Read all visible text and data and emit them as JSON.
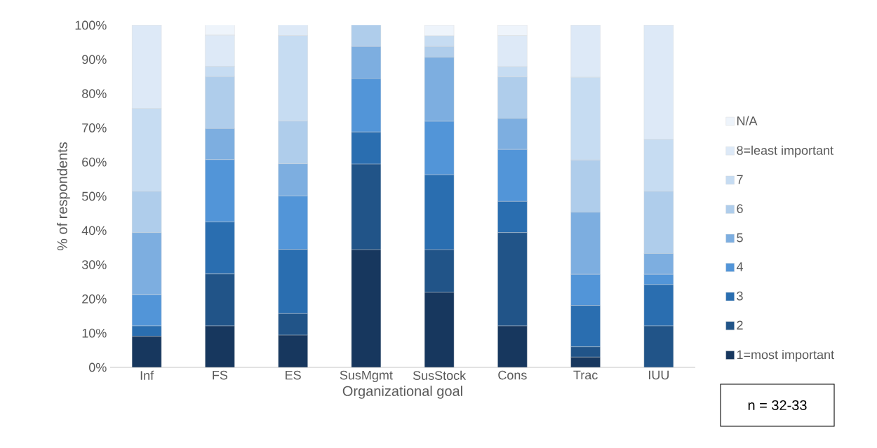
{
  "chart_data": {
    "type": "bar",
    "stacked": true,
    "xlabel": "Organizational goal",
    "ylabel": "% of respondents",
    "categories": [
      "Inf",
      "FS",
      "ES",
      "SusMgmt",
      "SusStock",
      "Cons",
      "Trac",
      "IUU"
    ],
    "series": [
      {
        "name": "1=most important",
        "color": "#17375e",
        "values": [
          9.1,
          12.1,
          9.4,
          34.4,
          21.9,
          12.1,
          3.0,
          0
        ]
      },
      {
        "name": "2",
        "color": "#215488",
        "values": [
          0,
          15.2,
          6.3,
          25.0,
          12.5,
          27.3,
          3.0,
          12.1
        ]
      },
      {
        "name": "3",
        "color": "#2a6eb0",
        "values": [
          3.0,
          15.2,
          18.8,
          9.4,
          21.9,
          9.1,
          12.1,
          12.1
        ]
      },
      {
        "name": "4",
        "color": "#5295d8",
        "values": [
          9.1,
          18.2,
          15.6,
          15.6,
          15.6,
          15.2,
          9.1,
          3.0
        ]
      },
      {
        "name": "5",
        "color": "#7daee0",
        "values": [
          18.2,
          9.1,
          9.4,
          9.4,
          18.8,
          9.1,
          18.2,
          6.1
        ]
      },
      {
        "name": "6",
        "color": "#afcdeb",
        "values": [
          12.1,
          15.2,
          12.5,
          6.3,
          3.1,
          12.1,
          15.2,
          18.2
        ]
      },
      {
        "name": "7",
        "color": "#c6dcf2",
        "values": [
          24.2,
          3.0,
          25.0,
          0,
          3.1,
          3.0,
          24.2,
          15.2
        ]
      },
      {
        "name": "8=least important",
        "color": "#dde9f7",
        "values": [
          24.3,
          9.1,
          3.1,
          0,
          0,
          9.1,
          15.2,
          33.3
        ]
      },
      {
        "name": "N/A",
        "color": "#eef4fb",
        "values": [
          0,
          3.0,
          0,
          0,
          3.1,
          3.0,
          0,
          0
        ]
      }
    ],
    "ylim": [
      0,
      100
    ],
    "yticks": [
      {
        "value": 0,
        "label": "0%"
      },
      {
        "value": 10,
        "label": "10%"
      },
      {
        "value": 20,
        "label": "20%"
      },
      {
        "value": 30,
        "label": "30%"
      },
      {
        "value": 40,
        "label": "40%"
      },
      {
        "value": 50,
        "label": "50%"
      },
      {
        "value": 60,
        "label": "60%"
      },
      {
        "value": 70,
        "label": "70%"
      },
      {
        "value": 80,
        "label": "80%"
      },
      {
        "value": 90,
        "label": "90%"
      },
      {
        "value": 100,
        "label": "100%"
      }
    ],
    "grid": false,
    "legend": "right",
    "annotations": [
      "n = 32-33"
    ]
  }
}
